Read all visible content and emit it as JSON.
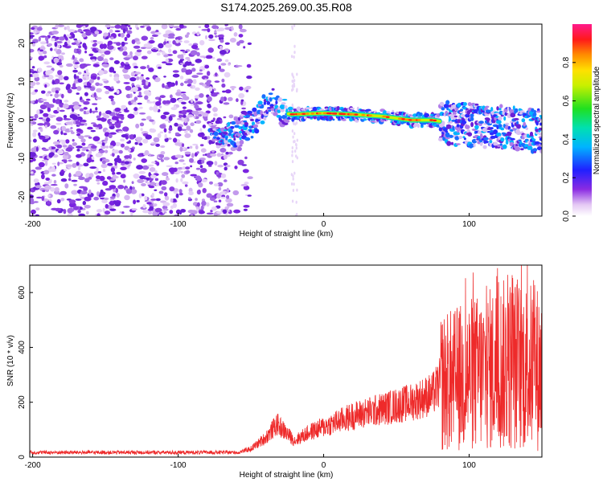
{
  "title": "S174.2025.269.00.35.R08",
  "chart_data": [
    {
      "type": "heatmap",
      "xlabel": "Height of straight line (km)",
      "ylabel": "Frequency (Hz)",
      "xlim": [
        -202,
        150
      ],
      "ylim": [
        -25,
        25
      ],
      "xticks": [
        -200,
        -100,
        0,
        100
      ],
      "yticks": [
        -20,
        -10,
        0,
        10,
        20
      ],
      "colorbar": {
        "label": "Normalized spectral amplitude",
        "range": [
          0.0,
          1.0
        ],
        "ticks": [
          "0.0",
          "0.2",
          "0.4",
          "0.6",
          "0.8"
        ]
      },
      "ridge": {
        "description_points_km_hz": [
          [
            -75,
            -4
          ],
          [
            -60,
            -3
          ],
          [
            -48,
            -1
          ],
          [
            -40,
            4
          ],
          [
            -33,
            5
          ],
          [
            -30,
            2
          ],
          [
            -22,
            1.5
          ],
          [
            0,
            1.8
          ],
          [
            20,
            1.5
          ],
          [
            40,
            1
          ],
          [
            60,
            0
          ],
          [
            75,
            0
          ],
          [
            90,
            -1
          ],
          [
            110,
            -1.5
          ],
          [
            130,
            -2
          ],
          [
            150,
            -3
          ]
        ],
        "peak_amplitude": 0.98
      }
    },
    {
      "type": "line",
      "xlabel": "Height of straight line (km)",
      "ylabel": "SNR (10 * v/v)",
      "xlim": [
        -202,
        150
      ],
      "ylim": [
        0,
        700
      ],
      "xticks": [
        -200,
        -100,
        0,
        100
      ],
      "yticks": [
        0,
        200,
        400,
        600
      ],
      "series": [
        {
          "name": "SNR",
          "color": "#ee2a2a",
          "envelope_km": [
            -202,
            -60,
            -50,
            -40,
            -32,
            -20,
            -10,
            0,
            20,
            40,
            60,
            75,
            80,
            90,
            100,
            110,
            120,
            130,
            140,
            150
          ],
          "envelope_snr": [
            15,
            15,
            30,
            70,
            120,
            60,
            90,
            110,
            150,
            175,
            200,
            230,
            270,
            280,
            300,
            310,
            330,
            340,
            330,
            320
          ]
        }
      ]
    }
  ]
}
